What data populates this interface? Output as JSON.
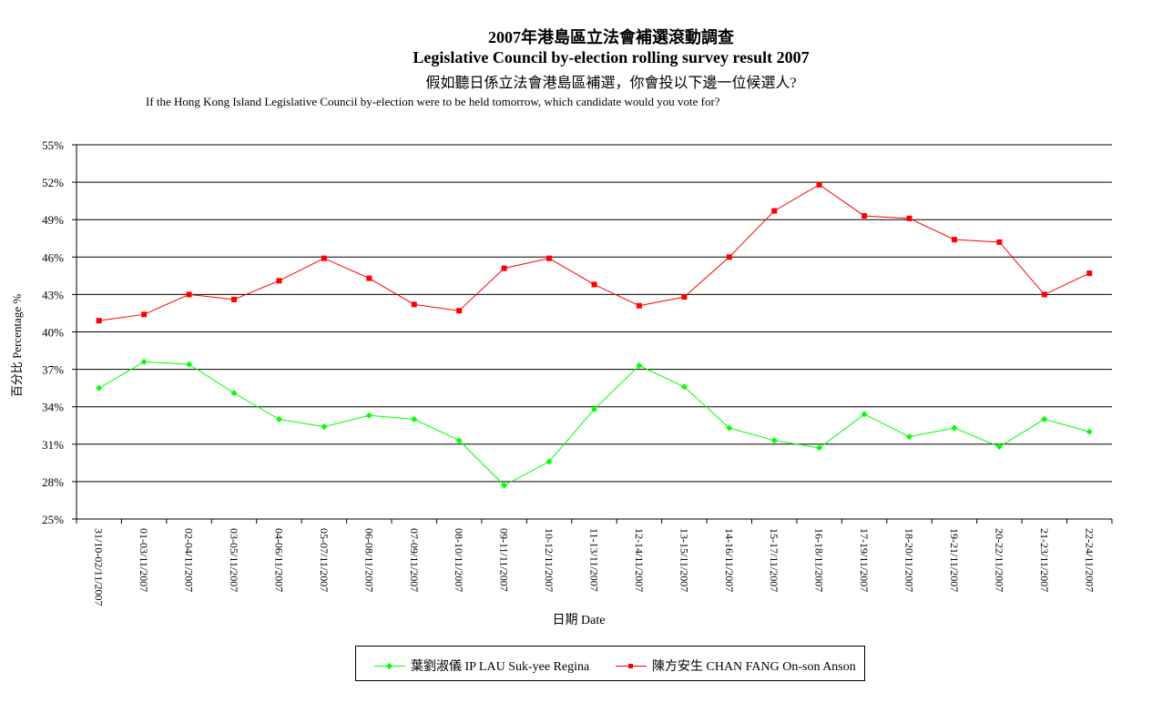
{
  "titles": {
    "zh": "2007年港島區立法會補選滾動調查",
    "en": "Legislative Council by-election rolling survey result 2007",
    "question_zh": "假如聽日係立法會港島區補選，你會投以下邊一位候選人?",
    "question_en": "If the Hong Kong Island Legislative Council by-election were to be held tomorrow, which candidate would you vote for?"
  },
  "colors": {
    "ip": "#00ff00",
    "chan": "#ff0000"
  },
  "chart_data": {
    "type": "line",
    "title": "2007年港島區立法會補選滾動調查 / Legislative Council by-election rolling survey result 2007",
    "xlabel": "日期 Date",
    "ylabel": "百分比 Percentage %",
    "ylim": [
      25,
      55
    ],
    "yticks": [
      "25%",
      "28%",
      "31%",
      "34%",
      "37%",
      "40%",
      "43%",
      "46%",
      "49%",
      "52%",
      "55%"
    ],
    "grid": true,
    "legend_position": "bottom",
    "categories": [
      "31/10-02/11/2007",
      "01-03/11/2007",
      "02-04/11/2007",
      "03-05/11/2007",
      "04-06/11/2007",
      "05-07/11/2007",
      "06-08/11/2007",
      "07-09/11/2007",
      "08-10/11/2007",
      "09-11/11/2007",
      "10-12/11/2007",
      "11-13/11/2007",
      "12-14/11/2007",
      "13-15/11/2007",
      "14-16/11/2007",
      "15-17/11/2007",
      "16-18/11/2007",
      "17-19/11/2007",
      "18-20/11/2007",
      "19-21/11/2007",
      "20-22/11/2007",
      "21-23/11/2007",
      "22-24/11/2007"
    ],
    "series": [
      {
        "name": "葉劉淑儀 IP LAU Suk-yee Regina",
        "values": [
          35.5,
          37.6,
          37.4,
          35.1,
          33.0,
          32.4,
          33.3,
          33.0,
          31.3,
          27.7,
          29.6,
          33.8,
          37.3,
          35.6,
          32.3,
          31.3,
          30.7,
          33.4,
          31.6,
          32.3,
          30.8,
          33.0,
          32.0
        ]
      },
      {
        "name": "陳方安生 CHAN FANG On-son Anson",
        "values": [
          40.9,
          41.4,
          43.0,
          42.6,
          44.1,
          45.9,
          44.3,
          42.2,
          41.7,
          45.1,
          45.9,
          43.8,
          42.1,
          42.8,
          46.0,
          49.7,
          51.8,
          49.3,
          49.1,
          47.4,
          47.2,
          43.0,
          44.7
        ]
      }
    ]
  }
}
